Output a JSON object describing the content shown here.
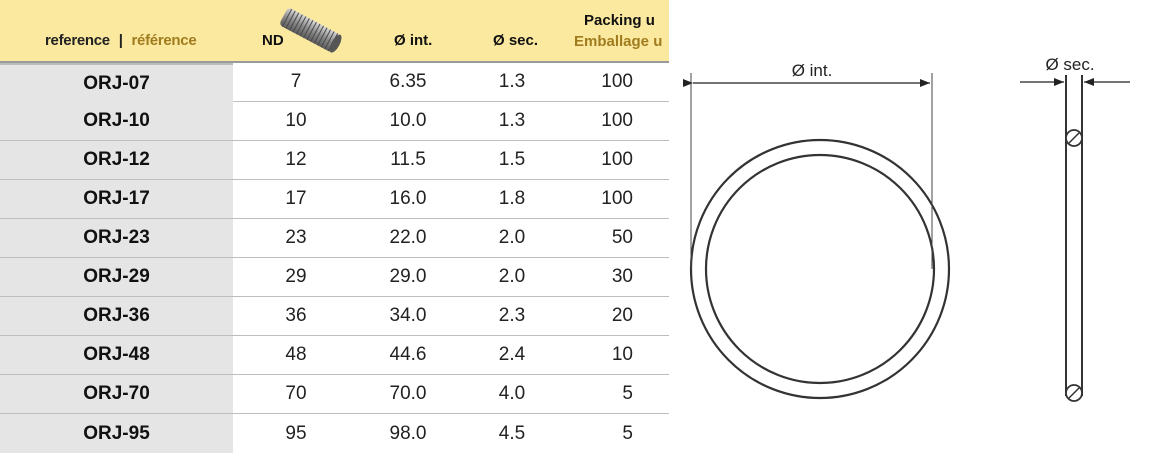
{
  "table": {
    "headers": {
      "reference_en": "reference",
      "separator": "|",
      "reference_fr": "référence",
      "nd": "ND",
      "d_int": "Ø int.",
      "d_sec": "Ø sec.",
      "packing_en": "Packing u",
      "packing_fr": "Emballage u"
    },
    "rows": [
      {
        "ref": "ORJ-07",
        "nd": "7",
        "d_int": "6.35",
        "d_sec": "1.3",
        "packing": "100"
      },
      {
        "ref": "ORJ-10",
        "nd": "10",
        "d_int": "10.0",
        "d_sec": "1.3",
        "packing": "100"
      },
      {
        "ref": "ORJ-12",
        "nd": "12",
        "d_int": "11.5",
        "d_sec": "1.5",
        "packing": "100"
      },
      {
        "ref": "ORJ-17",
        "nd": "17",
        "d_int": "16.0",
        "d_sec": "1.8",
        "packing": "100"
      },
      {
        "ref": "ORJ-23",
        "nd": "23",
        "d_int": "22.0",
        "d_sec": "2.0",
        "packing": "50"
      },
      {
        "ref": "ORJ-29",
        "nd": "29",
        "d_int": "29.0",
        "d_sec": "2.0",
        "packing": "30"
      },
      {
        "ref": "ORJ-36",
        "nd": "36",
        "d_int": "34.0",
        "d_sec": "2.3",
        "packing": "20"
      },
      {
        "ref": "ORJ-48",
        "nd": "48",
        "d_int": "44.6",
        "d_sec": "2.4",
        "packing": "10"
      },
      {
        "ref": "ORJ-70",
        "nd": "70",
        "d_int": "70.0",
        "d_sec": "4.0",
        "packing": "5"
      },
      {
        "ref": "ORJ-95",
        "nd": "95",
        "d_int": "98.0",
        "d_sec": "4.5",
        "packing": "5"
      }
    ]
  },
  "diagram": {
    "front_label": "Ø int.",
    "side_label": "Ø sec."
  },
  "colors": {
    "header_bg": "#fbe9a0",
    "ref_col_bg": "#e5e5e5",
    "french_text": "#a07c1e"
  },
  "icons": {
    "header_tube": "corrugated-tube-icon"
  }
}
